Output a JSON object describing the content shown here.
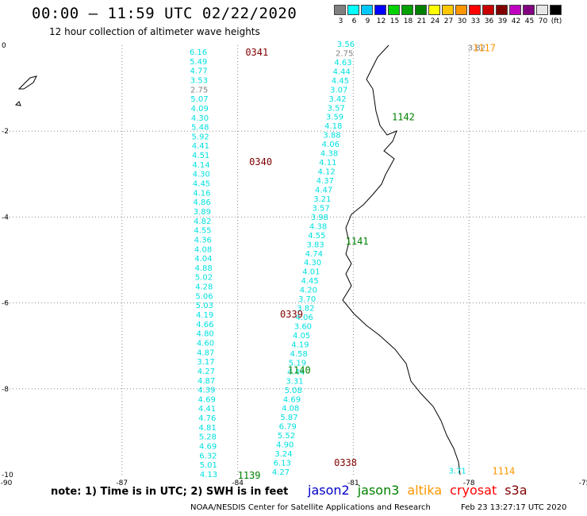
{
  "title": "00:00 – 11:59 UTC 02/22/2020",
  "subtitle": "12 hour collection of altimeter wave heights",
  "legend": {
    "unit_label": "(ft)",
    "colors": [
      "#808080",
      "#00ffff",
      "#00c8ff",
      "#0000ff",
      "#00d200",
      "#00a000",
      "#008000",
      "#ffff00",
      "#ffc800",
      "#ff9600",
      "#ff0000",
      "#c80000",
      "#800000",
      "#c000c0",
      "#800080",
      "#e6e6e6",
      "#000000"
    ],
    "values": [
      "3",
      "6",
      "9",
      "12",
      "15",
      "18",
      "21",
      "24",
      "27",
      "30",
      "33",
      "36",
      "39",
      "42",
      "45",
      "70",
      "(ft)"
    ]
  },
  "axes": {
    "x_ticks": [
      "-90",
      "-87",
      "-84",
      "-81",
      "-78",
      "-75"
    ],
    "y_ticks": [
      "0",
      "-2",
      "-4",
      "-6",
      "-8",
      "-10"
    ]
  },
  "colors": {
    "cyan": "#00e0e0",
    "gray": "#808080",
    "pass_0341": "#800000",
    "pass_1142": "#008000",
    "pass_1117": "#ff9600",
    "pass_1114": "#ff9600"
  },
  "chart_data": {
    "type": "scatter",
    "x_range": [
      -90,
      -75
    ],
    "y_range": [
      -10,
      0
    ],
    "pass_labels": [
      {
        "text": "0341",
        "lon": -83.8,
        "lat": -0.15,
        "color": "#800000"
      },
      {
        "text": "0340",
        "lon": -83.7,
        "lat": -2.7,
        "color": "#800000"
      },
      {
        "text": "0339",
        "lon": -82.9,
        "lat": -6.25,
        "color": "#800000"
      },
      {
        "text": "0338",
        "lon": -81.5,
        "lat": -9.7,
        "color": "#800000"
      },
      {
        "text": "1117",
        "lon": -77.9,
        "lat": -0.05,
        "color": "#ff9600"
      },
      {
        "text": "1142",
        "lon": -80.0,
        "lat": -1.65,
        "color": "#008000"
      },
      {
        "text": "1141",
        "lon": -81.2,
        "lat": -4.55,
        "color": "#008000"
      },
      {
        "text": "1140",
        "lon": -82.7,
        "lat": -7.55,
        "color": "#008000"
      },
      {
        "text": "1139",
        "lon": -84.0,
        "lat": -10.0,
        "color": "#008000"
      },
      {
        "text": "1114",
        "lon": -77.4,
        "lat": -9.9,
        "color": "#ff9600"
      }
    ],
    "track_a_values": [
      "6.16",
      "5.49",
      "4.77",
      "3.53",
      "2.75",
      "5.07",
      "4.09",
      "4.30",
      "5.48",
      "5.92",
      "4.41",
      "4.51",
      "4.14",
      "4.30",
      "4.45",
      "4.16",
      "4.86",
      "3.89",
      "4.82",
      "4.55",
      "4.36",
      "4.08",
      "4.04",
      "4.88",
      "5.02",
      "4.28",
      "5.06",
      "5.03",
      "4.19",
      "4.66",
      "4.80",
      "4.60",
      "4.87",
      "3.17",
      "4.27",
      "4.87",
      "4.39",
      "4.69",
      "4.41",
      "4.76",
      "4.81",
      "5.28",
      "4.69",
      "6.32",
      "5.01",
      "4.13"
    ],
    "track_b_values": [
      "3.56",
      "2.75",
      "4.63",
      "4.44",
      "4.45",
      "3.07",
      "3.42",
      "3.57",
      "3.59",
      "4.18",
      "3.88",
      "4.06",
      "4.38",
      "4.11",
      "4.12",
      "4.37",
      "4.47",
      "3.21",
      "3.57",
      "3.98",
      "4.38",
      "4.55",
      "3.83",
      "4.74",
      "4.30",
      "4.01",
      "4.45",
      "4.20",
      "3.70",
      "3.82",
      "4.06",
      "3.60",
      "4.05",
      "4.19",
      "4.58",
      "5.19",
      "4.44",
      "3.31",
      "5.08",
      "4.69",
      "4.08",
      "5.87",
      "6.79",
      "5.52",
      "4.90",
      "3.24",
      "6.13",
      "4.27"
    ],
    "extra_points": [
      {
        "text": "3.82",
        "lon": -77.8,
        "lat": -0.05,
        "color": "#808080"
      },
      {
        "text": "3.71",
        "lon": -78.3,
        "lat": -9.9,
        "color": "#00e0e0"
      }
    ]
  },
  "footer": {
    "note": "note:  1) Time is in UTC;  2) SWH is in feet",
    "satellites": [
      {
        "name": "jason2",
        "color": "#0000c8"
      },
      {
        "name": "jason3",
        "color": "#008000"
      },
      {
        "name": "altika",
        "color": "#ff9600"
      },
      {
        "name": "cryosat",
        "color": "#ff0000"
      },
      {
        "name": "s3a",
        "color": "#800000"
      }
    ],
    "credit": "NOAA/NESDIS Center for Satellite Applications and Research",
    "stamp": "Feb 23 13:27:17 UTC 2020"
  }
}
